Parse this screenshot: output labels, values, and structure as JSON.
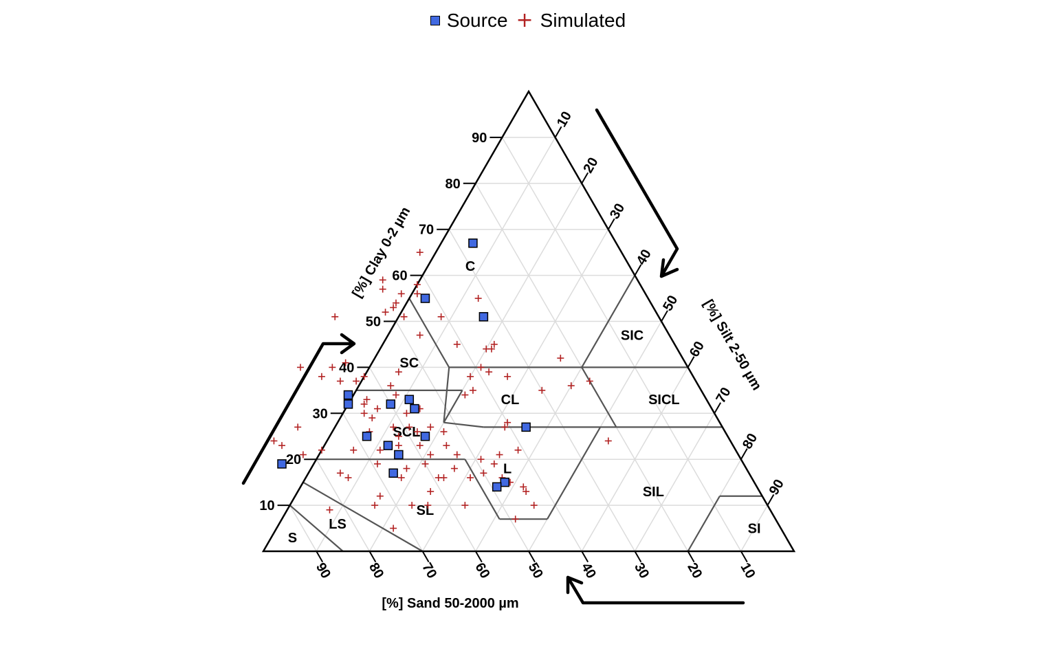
{
  "chart_data": {
    "type": "scatter",
    "subtype": "soil-texture-ternary",
    "legend": {
      "placement": "top-center",
      "entries": [
        {
          "name": "Source",
          "marker": "square",
          "color": "#4169E1"
        },
        {
          "name": "Simulated",
          "marker": "plus",
          "color": "#B22222"
        }
      ]
    },
    "axes": {
      "clay": {
        "label": "[%] Clay 0-2 µm",
        "ticks": [
          10,
          20,
          30,
          40,
          50,
          60,
          70,
          80,
          90
        ]
      },
      "silt": {
        "label": "[%] Silt 2-50 µm",
        "ticks": [
          10,
          20,
          30,
          40,
          50,
          60,
          70,
          80,
          90
        ]
      },
      "sand": {
        "label": "[%] Sand 50-2000 µm",
        "ticks": [
          90,
          80,
          70,
          60,
          50,
          40,
          30,
          20,
          10
        ]
      }
    },
    "grid": true,
    "grid_step": 10,
    "regions": [
      "C",
      "SIC",
      "SC",
      "CL",
      "SICL",
      "SCL",
      "L",
      "SIL",
      "SL",
      "LS",
      "S",
      "SI"
    ],
    "series": [
      {
        "name": "Source",
        "points": [
          {
            "clay": 67,
            "sand": 27
          },
          {
            "clay": 55,
            "sand": 42
          },
          {
            "clay": 51,
            "sand": 33
          },
          {
            "clay": 34,
            "sand": 67
          },
          {
            "clay": 32,
            "sand": 68
          },
          {
            "clay": 32,
            "sand": 60
          },
          {
            "clay": 33,
            "sand": 56
          },
          {
            "clay": 31,
            "sand": 56
          },
          {
            "clay": 27,
            "sand": 37
          },
          {
            "clay": 25,
            "sand": 68
          },
          {
            "clay": 25,
            "sand": 57
          },
          {
            "clay": 23,
            "sand": 65
          },
          {
            "clay": 21,
            "sand": 64
          },
          {
            "clay": 19,
            "sand": 87
          },
          {
            "clay": 17,
            "sand": 67
          },
          {
            "clay": 15,
            "sand": 47
          },
          {
            "clay": 14,
            "sand": 49
          }
        ]
      },
      {
        "name": "Simulated",
        "points": [
          {
            "clay": 65,
            "sand": 38
          },
          {
            "clay": 59,
            "sand": 48
          },
          {
            "clay": 58,
            "sand": 42
          },
          {
            "clay": 57,
            "sand": 49
          },
          {
            "clay": 56,
            "sand": 43
          },
          {
            "clay": 56,
            "sand": 46
          },
          {
            "clay": 54,
            "sand": 48
          },
          {
            "clay": 53,
            "sand": 49
          },
          {
            "clay": 55,
            "sand": 32
          },
          {
            "clay": 52,
            "sand": 51
          },
          {
            "clay": 51,
            "sand": 61
          },
          {
            "clay": 51,
            "sand": 48
          },
          {
            "clay": 51,
            "sand": 41
          },
          {
            "clay": 47,
            "sand": 47
          },
          {
            "clay": 45,
            "sand": 41
          },
          {
            "clay": 45,
            "sand": 34
          },
          {
            "clay": 44,
            "sand": 36
          },
          {
            "clay": 44,
            "sand": 35
          },
          {
            "clay": 42,
            "sand": 23
          },
          {
            "clay": 41,
            "sand": 64
          },
          {
            "clay": 40,
            "sand": 67
          },
          {
            "clay": 40,
            "sand": 39
          },
          {
            "clay": 40,
            "sand": 73
          },
          {
            "clay": 39,
            "sand": 38
          },
          {
            "clay": 39,
            "sand": 55
          },
          {
            "clay": 38,
            "sand": 70
          },
          {
            "clay": 38,
            "sand": 62
          },
          {
            "clay": 38,
            "sand": 42
          },
          {
            "clay": 38,
            "sand": 35
          },
          {
            "clay": 37,
            "sand": 20
          },
          {
            "clay": 37,
            "sand": 64
          },
          {
            "clay": 37,
            "sand": 67
          },
          {
            "clay": 36,
            "sand": 58
          },
          {
            "clay": 36,
            "sand": 24
          },
          {
            "clay": 35,
            "sand": 30
          },
          {
            "clay": 35,
            "sand": 43
          },
          {
            "clay": 34,
            "sand": 45
          },
          {
            "clay": 34,
            "sand": 67
          },
          {
            "clay": 34,
            "sand": 58
          },
          {
            "clay": 33,
            "sand": 64
          },
          {
            "clay": 32,
            "sand": 65
          },
          {
            "clay": 32,
            "sand": 60
          },
          {
            "clay": 31,
            "sand": 63
          },
          {
            "clay": 31,
            "sand": 55
          },
          {
            "clay": 30,
            "sand": 66
          },
          {
            "clay": 30,
            "sand": 58
          },
          {
            "clay": 29,
            "sand": 65
          },
          {
            "clay": 28,
            "sand": 40
          },
          {
            "clay": 27,
            "sand": 62
          },
          {
            "clay": 27,
            "sand": 41
          },
          {
            "clay": 27,
            "sand": 55
          },
          {
            "clay": 27,
            "sand": 59
          },
          {
            "clay": 27,
            "sand": 80
          },
          {
            "clay": 26,
            "sand": 53
          },
          {
            "clay": 26,
            "sand": 58
          },
          {
            "clay": 26,
            "sand": 67
          },
          {
            "clay": 25,
            "sand": 62
          },
          {
            "clay": 24,
            "sand": 86
          },
          {
            "clay": 24,
            "sand": 23
          },
          {
            "clay": 23,
            "sand": 85
          },
          {
            "clay": 23,
            "sand": 59
          },
          {
            "clay": 23,
            "sand": 63
          },
          {
            "clay": 23,
            "sand": 54
          },
          {
            "clay": 22,
            "sand": 72
          },
          {
            "clay": 22,
            "sand": 78
          },
          {
            "clay": 22,
            "sand": 67
          },
          {
            "clay": 22,
            "sand": 41
          },
          {
            "clay": 21,
            "sand": 82
          },
          {
            "clay": 21,
            "sand": 58
          },
          {
            "clay": 21,
            "sand": 53
          },
          {
            "clay": 21,
            "sand": 45
          },
          {
            "clay": 20,
            "sand": 49
          },
          {
            "clay": 19,
            "sand": 69
          },
          {
            "clay": 19,
            "sand": 60
          },
          {
            "clay": 19,
            "sand": 47
          },
          {
            "clay": 18,
            "sand": 64
          },
          {
            "clay": 18,
            "sand": 55
          },
          {
            "clay": 17,
            "sand": 77
          },
          {
            "clay": 17,
            "sand": 50
          },
          {
            "clay": 16,
            "sand": 76
          },
          {
            "clay": 16,
            "sand": 66
          },
          {
            "clay": 16,
            "sand": 59
          },
          {
            "clay": 16,
            "sand": 58
          },
          {
            "clay": 16,
            "sand": 53
          },
          {
            "clay": 16,
            "sand": 47
          },
          {
            "clay": 15,
            "sand": 46
          },
          {
            "clay": 14,
            "sand": 44
          },
          {
            "clay": 13,
            "sand": 44
          },
          {
            "clay": 13,
            "sand": 62
          },
          {
            "clay": 12,
            "sand": 72
          },
          {
            "clay": 10,
            "sand": 74
          },
          {
            "clay": 10,
            "sand": 67
          },
          {
            "clay": 10,
            "sand": 64
          },
          {
            "clay": 10,
            "sand": 57
          },
          {
            "clay": 10,
            "sand": 44
          },
          {
            "clay": 9,
            "sand": 83
          },
          {
            "clay": 7,
            "sand": 49
          },
          {
            "clay": 5,
            "sand": 73
          }
        ]
      }
    ]
  }
}
